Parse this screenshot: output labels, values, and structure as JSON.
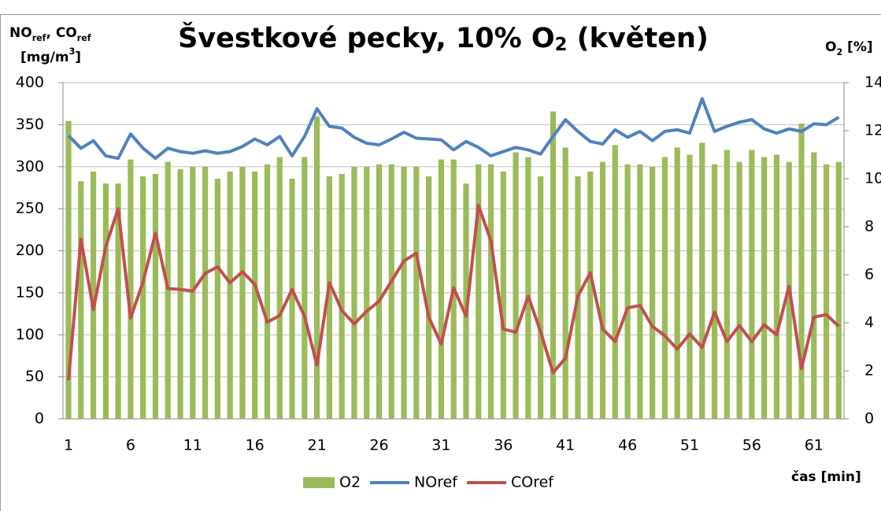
{
  "chart_data": {
    "type": "bar-line",
    "title": [
      "Švestkové pecky, 10% O",
      "2",
      " (květen)"
    ],
    "y_label": [
      [
        "NO",
        "ref",
        ", CO",
        "ref"
      ],
      [
        "[mg/m",
        "3",
        "]"
      ]
    ],
    "y2_label": [
      "O",
      "2",
      " [%]"
    ],
    "x_label": "čas [min]",
    "categories": [
      1,
      null,
      null,
      null,
      null,
      6,
      null,
      null,
      null,
      null,
      11,
      null,
      null,
      null,
      null,
      16,
      null,
      null,
      null,
      null,
      21,
      null,
      null,
      null,
      null,
      26,
      null,
      null,
      null,
      null,
      31,
      null,
      null,
      null,
      null,
      36,
      null,
      null,
      null,
      null,
      41,
      null,
      null,
      null,
      null,
      46,
      null,
      null,
      null,
      null,
      51,
      null,
      null,
      null,
      null,
      56,
      null,
      null,
      null,
      null,
      61,
      null,
      null
    ],
    "ylim": [
      0,
      400
    ],
    "yticks": [
      0,
      50,
      100,
      150,
      200,
      250,
      300,
      350,
      400
    ],
    "y2lim": [
      0,
      14
    ],
    "y2ticks": [
      0,
      2,
      4,
      6,
      8,
      10,
      12,
      14
    ],
    "grid": true,
    "legend": "bottom",
    "series": [
      {
        "name": "O2",
        "type": "bar",
        "axis": "y2",
        "color": "#9bbb59",
        "values": [
          12.4,
          9.9,
          10.3,
          9.8,
          9.8,
          10.8,
          10.1,
          10.2,
          10.7,
          10.4,
          10.5,
          10.5,
          10.0,
          10.3,
          10.5,
          10.3,
          10.6,
          10.9,
          10.0,
          10.9,
          12.6,
          10.1,
          10.2,
          10.5,
          10.5,
          10.6,
          10.6,
          10.5,
          10.5,
          10.1,
          10.8,
          10.8,
          9.8,
          10.6,
          10.6,
          10.3,
          11.1,
          10.9,
          10.1,
          12.8,
          11.3,
          10.1,
          10.3,
          10.7,
          11.4,
          10.6,
          10.6,
          10.5,
          10.9,
          11.3,
          11.0,
          11.5,
          10.6,
          11.2,
          10.7,
          11.2,
          10.9,
          11.0,
          10.7,
          12.3,
          11.1,
          10.6,
          10.7
        ]
      },
      {
        "name": "NOref",
        "type": "line",
        "color": "#4f81bd",
        "values": [
          337,
          322,
          331,
          313,
          310,
          339,
          322,
          310,
          322,
          318,
          316,
          319,
          316,
          318,
          324,
          333,
          326,
          336,
          313,
          336,
          369,
          348,
          346,
          335,
          328,
          326,
          333,
          341,
          334,
          333,
          332,
          320,
          330,
          323,
          313,
          318,
          323,
          320,
          315,
          336,
          356,
          342,
          330,
          327,
          344,
          335,
          342,
          331,
          342,
          344,
          340,
          381,
          342,
          348,
          353,
          356,
          345,
          340,
          345,
          342,
          351,
          350,
          359
        ]
      },
      {
        "name": "COref",
        "type": "line",
        "color": "#c0504d",
        "values": [
          46,
          214,
          130,
          205,
          250,
          120,
          163,
          221,
          155,
          154,
          152,
          173,
          181,
          162,
          175,
          160,
          115,
          123,
          154,
          122,
          64,
          162,
          129,
          113,
          128,
          140,
          164,
          188,
          197,
          121,
          89,
          156,
          122,
          254,
          212,
          107,
          103,
          146,
          104,
          55,
          72,
          146,
          174,
          107,
          92,
          132,
          135,
          110,
          99,
          83,
          101,
          85,
          127,
          92,
          111,
          92,
          112,
          100,
          158,
          60,
          121,
          124,
          110
        ]
      }
    ]
  }
}
